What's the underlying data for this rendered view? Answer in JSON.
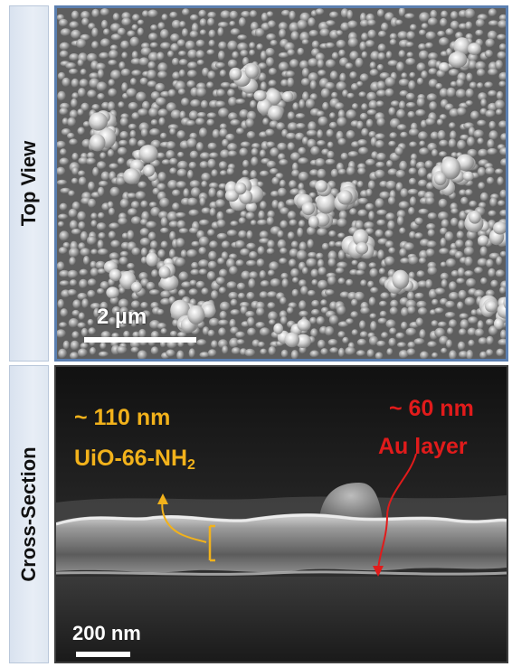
{
  "figure": {
    "top_panel": {
      "label": "Top View",
      "scale_bar": "2 µm"
    },
    "bottom_panel": {
      "label": "Cross-Section",
      "scale_bar": "200 nm",
      "annotations": {
        "uio_thickness": "~ 110 nm",
        "uio_name": "UiO-66-NH",
        "uio_subscript": "2",
        "au_thickness": "~ 60 nm",
        "au_name": "Au layer"
      }
    },
    "colors": {
      "label_bg": "#dfe7f1",
      "panel_border": "#5b7fb0",
      "uio_annotation": "#f2b21b",
      "au_annotation": "#e11b1b"
    }
  }
}
